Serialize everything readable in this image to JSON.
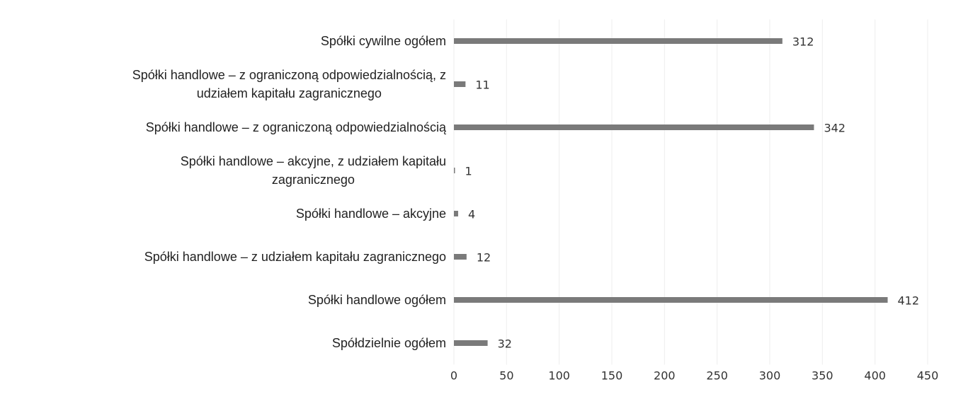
{
  "chart_data": {
    "type": "bar",
    "orientation": "horizontal",
    "categories": [
      "Spółki cywilne ogółem",
      "Spółki handlowe – z ograniczoną odpowiedzialnością, z\nudziałem kapitału zagranicznego",
      "Spółki handlowe – z ograniczoną odpowiedzialnością",
      "Spółki handlowe – akcyjne, z udziałem kapitału\nzagranicznego",
      "Spółki handlowe – akcyjne",
      "Spółki handlowe – z udziałem kapitału zagranicznego",
      "Spółki handlowe ogółem",
      "Spółdzielnie ogółem"
    ],
    "values": [
      312,
      11,
      342,
      1,
      4,
      12,
      412,
      32
    ],
    "color": "#7a7a7a",
    "xlim": [
      0,
      450
    ],
    "xticks": [
      0,
      50,
      100,
      150,
      200,
      250,
      300,
      350,
      400,
      450
    ],
    "grid": true
  }
}
